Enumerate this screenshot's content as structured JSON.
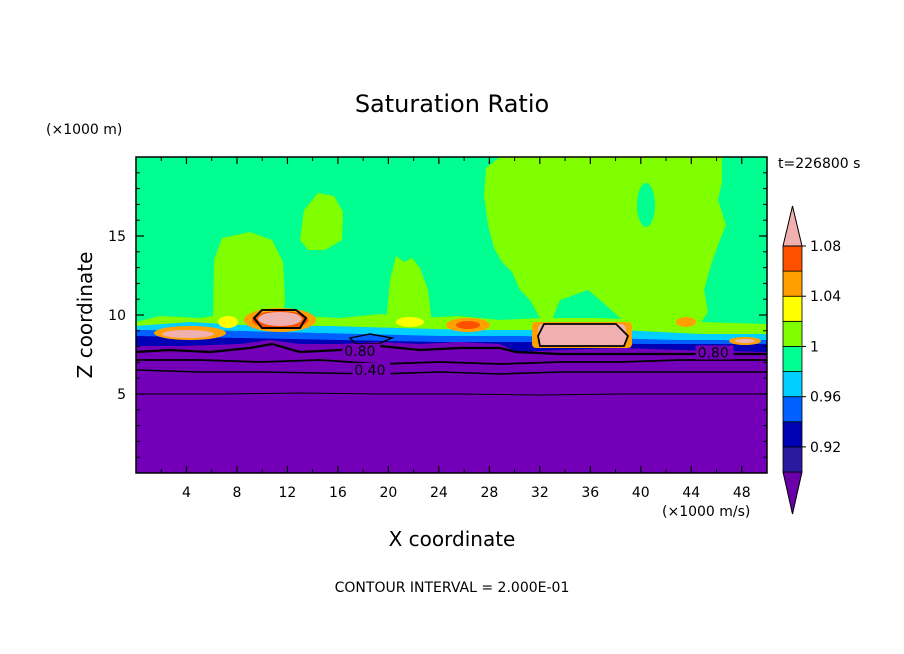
{
  "chart_data": {
    "type": "contour",
    "title": "Saturation Ratio",
    "xlabel": "X coordinate",
    "ylabel": "Z coordinate",
    "x_units": "(×1000 m/s)",
    "y_units": "(×1000 m)",
    "time_label": "t=226800 s",
    "footer": "CONTOUR INTERVAL = 2.000E-01",
    "xlim": [
      0,
      50
    ],
    "ylim": [
      0,
      20
    ],
    "x_ticks": [
      4,
      8,
      12,
      16,
      20,
      24,
      28,
      32,
      36,
      40,
      44,
      48
    ],
    "y_ticks": [
      5,
      10,
      15
    ],
    "contour_labels": [
      {
        "text": "0.80",
        "x": 16.5,
        "y": 7.6
      },
      {
        "text": "0.40",
        "x": 17.3,
        "y": 6.4
      },
      {
        "text": "0.80",
        "x": 44.5,
        "y": 7.5
      }
    ],
    "colorbar": {
      "labels": [
        "1.08",
        "1.04",
        "1",
        "0.96",
        "0.92"
      ],
      "levels": [
        0.9,
        0.92,
        0.94,
        0.96,
        0.98,
        1.0,
        1.02,
        1.04,
        1.06,
        1.08,
        1.1
      ],
      "colors": [
        "#6a00a8",
        "#2a1aa0",
        "#0000b4",
        "#0060ff",
        "#00d0ff",
        "#00ff90",
        "#80ff00",
        "#ffff00",
        "#ffa000",
        "#ff5000",
        "#f0b0b0"
      ],
      "extend": "both"
    },
    "regions": {
      "upper_background": {
        "value": 0.99,
        "color": "#00ff90"
      },
      "lower_background": {
        "value": 0.4,
        "color": "#7300b8"
      },
      "saturated_plumes": [
        {
          "x": [
            5.5,
            11.5
          ],
          "z": [
            9.8,
            15.0
          ]
        },
        {
          "x": [
            13.0,
            16.5
          ],
          "z": [
            14.0,
            17.5
          ]
        },
        {
          "x": [
            20.0,
            23.0
          ],
          "z": [
            9.8,
            13.5
          ]
        },
        {
          "x": [
            27.0,
            47.0
          ],
          "z": [
            9.0,
            20.0
          ]
        }
      ],
      "supersaturated_patches": [
        {
          "x": [
            9.5,
            13.5
          ],
          "z": [
            9.2,
            10.4
          ]
        },
        {
          "x": [
            31.5,
            38.5
          ],
          "z": [
            8.0,
            9.2
          ]
        },
        {
          "x": [
            2.0,
            6.0
          ],
          "z": [
            8.2,
            9.0
          ]
        }
      ]
    }
  }
}
